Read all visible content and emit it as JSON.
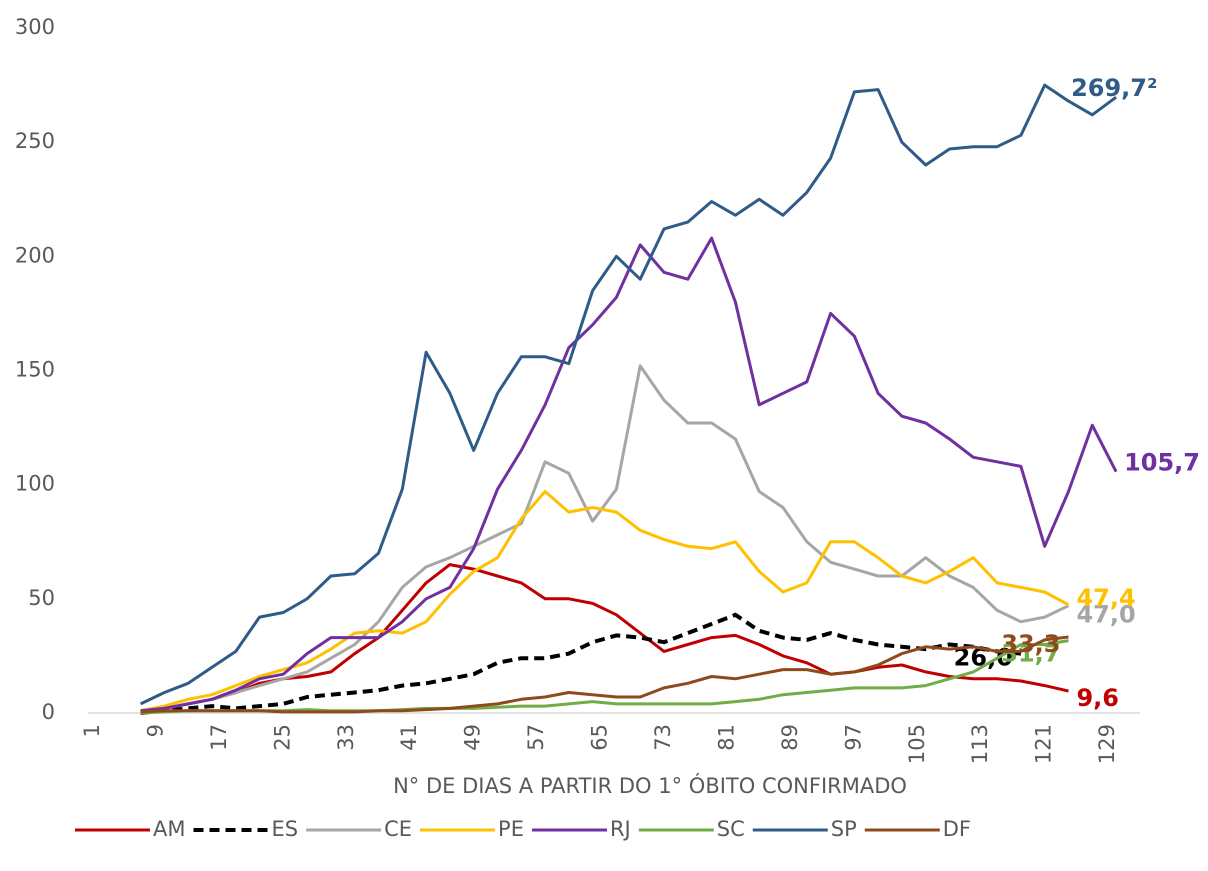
{
  "chart_data": {
    "type": "line",
    "xlabel": "N° DE DIAS A PARTIR DO 1° ÓBITO CONFIRMADO",
    "x": [
      7,
      10,
      13,
      16,
      19,
      22,
      25,
      28,
      31,
      34,
      37,
      40,
      43,
      46,
      49,
      52,
      55,
      58,
      61,
      64,
      67,
      70,
      73,
      76,
      79,
      82,
      85,
      88,
      91,
      94,
      97,
      100,
      103,
      106,
      109,
      112,
      115,
      118,
      121,
      124,
      127,
      130
    ],
    "xlim": [
      1,
      131
    ],
    "xticks": [
      1,
      9,
      17,
      25,
      33,
      41,
      49,
      57,
      65,
      73,
      81,
      89,
      97,
      105,
      113,
      121,
      129
    ],
    "ylim": [
      0,
      300
    ],
    "yticks": [
      0,
      50,
      100,
      150,
      200,
      250,
      300
    ],
    "grid": false,
    "legend": "bottom",
    "series": [
      {
        "name": "AM",
        "color": "#c00000",
        "dash": false,
        "end_label": "9,6",
        "values": [
          0.5,
          2,
          4,
          6,
          9,
          13,
          15,
          16,
          18,
          26,
          33,
          45,
          57,
          65,
          63,
          60,
          57,
          50,
          50,
          48,
          43,
          35,
          27,
          30,
          33,
          34,
          30,
          25,
          22,
          17,
          18,
          20,
          21,
          18,
          16,
          15,
          15,
          14,
          12,
          9.6,
          null,
          null
        ]
      },
      {
        "name": "ES",
        "color": "#000000",
        "dash": true,
        "end_label": "26,0",
        "values": [
          0,
          1,
          2,
          3,
          2,
          3,
          4,
          7,
          8,
          9,
          10,
          12,
          13,
          15,
          17,
          22,
          24,
          24,
          26,
          31,
          34,
          33,
          31,
          35,
          39,
          43,
          36,
          33,
          32,
          35,
          32,
          30,
          29,
          28,
          30,
          29,
          27,
          26.0,
          null,
          null,
          null,
          null
        ]
      },
      {
        "name": "CE",
        "color": "#a6a6a6",
        "dash": false,
        "end_label": "47,0",
        "values": [
          1,
          2,
          4,
          6,
          9,
          12,
          15,
          18,
          24,
          30,
          40,
          55,
          64,
          68,
          73,
          78,
          83,
          110,
          105,
          84,
          98,
          152,
          137,
          127,
          127,
          120,
          97,
          90,
          75,
          66,
          63,
          60,
          60,
          68,
          60,
          55,
          45,
          40,
          42,
          47.0,
          null,
          null
        ]
      },
      {
        "name": "PE",
        "color": "#ffc000",
        "dash": false,
        "end_label": "47,4",
        "values": [
          1,
          3,
          6,
          8,
          12,
          16,
          19,
          22,
          28,
          35,
          36,
          35,
          40,
          52,
          62,
          68,
          85,
          97,
          88,
          90,
          88,
          80,
          76,
          73,
          72,
          75,
          62,
          53,
          57,
          75,
          75,
          68,
          60,
          57,
          62,
          68,
          57,
          55,
          53,
          47.4,
          null,
          null
        ]
      },
      {
        "name": "RJ",
        "color": "#7030a0",
        "dash": false,
        "end_label": "105,7",
        "values": [
          1,
          2,
          4,
          6,
          10,
          15,
          17,
          26,
          33,
          33,
          33,
          40,
          50,
          55,
          72,
          98,
          115,
          135,
          160,
          170,
          182,
          205,
          193,
          190,
          208,
          180,
          135,
          140,
          145,
          175,
          165,
          140,
          130,
          127,
          120,
          112,
          110,
          108,
          73,
          97,
          126,
          105.7
        ]
      },
      {
        "name": "SC",
        "color": "#70ad47",
        "dash": false,
        "end_label": "31,7",
        "values": [
          0,
          0.5,
          1,
          1,
          1,
          1,
          1,
          1.5,
          1,
          1,
          1,
          1.5,
          2,
          2,
          2,
          2.5,
          3,
          3,
          4,
          5,
          4,
          4,
          4,
          4,
          4,
          5,
          6,
          8,
          9,
          10,
          11,
          11,
          11,
          12,
          15,
          18,
          24,
          30,
          30,
          31.7,
          null,
          null
        ]
      },
      {
        "name": "SP",
        "color": "#2f5b88",
        "dash": false,
        "end_label": "269,7²",
        "values": [
          4,
          9,
          13,
          20,
          27,
          42,
          44,
          50,
          60,
          61,
          70,
          98,
          158,
          140,
          115,
          140,
          156,
          156,
          153,
          185,
          200,
          190,
          212,
          215,
          224,
          218,
          225,
          218,
          228,
          243,
          272,
          273,
          250,
          240,
          247,
          248,
          248,
          253,
          275,
          268,
          262,
          269.7
        ]
      },
      {
        "name": "DF",
        "color": "#8e4a1c",
        "dash": false,
        "end_label": "33,3",
        "values": [
          0.5,
          1,
          1,
          1,
          1,
          1,
          0.5,
          0.5,
          0.5,
          0.5,
          1,
          1,
          1.5,
          2,
          3,
          4,
          6,
          7,
          9,
          8,
          7,
          7,
          11,
          13,
          16,
          15,
          17,
          19,
          19,
          17,
          18,
          21,
          26,
          29,
          28,
          29,
          27,
          27,
          32,
          33.3,
          null,
          null
        ]
      }
    ]
  }
}
